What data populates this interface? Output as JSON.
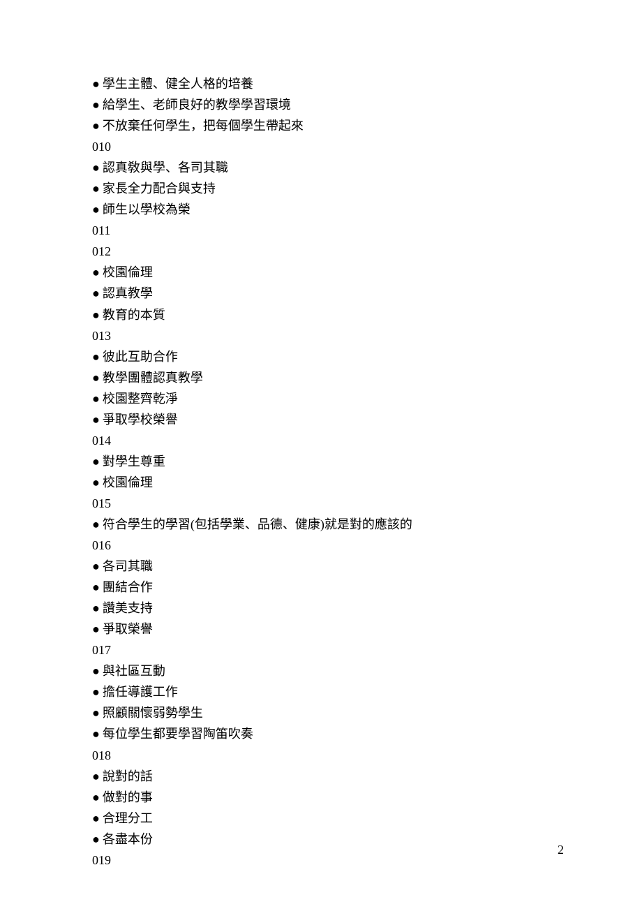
{
  "document": {
    "page_number": "2",
    "font_size_pt": 14,
    "line_height": 1.67,
    "text_color": "#000000",
    "background_color": "#ffffff",
    "bullet_char": "●",
    "lines": [
      {
        "type": "bullet",
        "text": "學生主體、健全人格的培養"
      },
      {
        "type": "bullet",
        "text": "給學生、老師良好的教學學習環境"
      },
      {
        "type": "bullet",
        "text": "不放棄任何學生，把每個學生帶起來"
      },
      {
        "type": "heading",
        "text": "010"
      },
      {
        "type": "bullet",
        "text": "認真敎與學、各司其職"
      },
      {
        "type": "bullet",
        "text": "家長全力配合與支持"
      },
      {
        "type": "bullet",
        "text": "師生以學校為榮"
      },
      {
        "type": "heading",
        "text": "011"
      },
      {
        "type": "heading",
        "text": "012"
      },
      {
        "type": "bullet",
        "text": "校園倫理"
      },
      {
        "type": "bullet",
        "text": "認真教學"
      },
      {
        "type": "bullet",
        "text": "教育的本質"
      },
      {
        "type": "heading",
        "text": "013"
      },
      {
        "type": "bullet",
        "text": "彼此互助合作"
      },
      {
        "type": "bullet",
        "text": "教學團體認真教學"
      },
      {
        "type": "bullet",
        "text": "校園整齊乾淨"
      },
      {
        "type": "bullet",
        "text": "爭取學校榮譽"
      },
      {
        "type": "heading",
        "text": "014"
      },
      {
        "type": "bullet",
        "text": "對學生尊重"
      },
      {
        "type": "bullet",
        "text": "校園倫理"
      },
      {
        "type": "heading",
        "text": "015"
      },
      {
        "type": "bullet",
        "text": "符合學生的學習(包括學業、品德、健康)就是對的應該的"
      },
      {
        "type": "heading",
        "text": "016"
      },
      {
        "type": "bullet",
        "text": "各司其職"
      },
      {
        "type": "bullet",
        "text": "團結合作"
      },
      {
        "type": "bullet",
        "text": "讚美支持"
      },
      {
        "type": "bullet",
        "text": "爭取榮譽"
      },
      {
        "type": "heading",
        "text": "017"
      },
      {
        "type": "bullet",
        "text": "與社區互動"
      },
      {
        "type": "bullet",
        "text": "擔任導護工作"
      },
      {
        "type": "bullet",
        "text": "照顧關懷弱勢學生"
      },
      {
        "type": "bullet",
        "text": "每位學生都要學習陶笛吹奏"
      },
      {
        "type": "heading",
        "text": "018"
      },
      {
        "type": "bullet",
        "text": "說對的話"
      },
      {
        "type": "bullet",
        "text": "做對的事"
      },
      {
        "type": "bullet",
        "text": "合理分工"
      },
      {
        "type": "bullet",
        "text": "各盡本份"
      },
      {
        "type": "heading",
        "text": "019"
      }
    ]
  }
}
